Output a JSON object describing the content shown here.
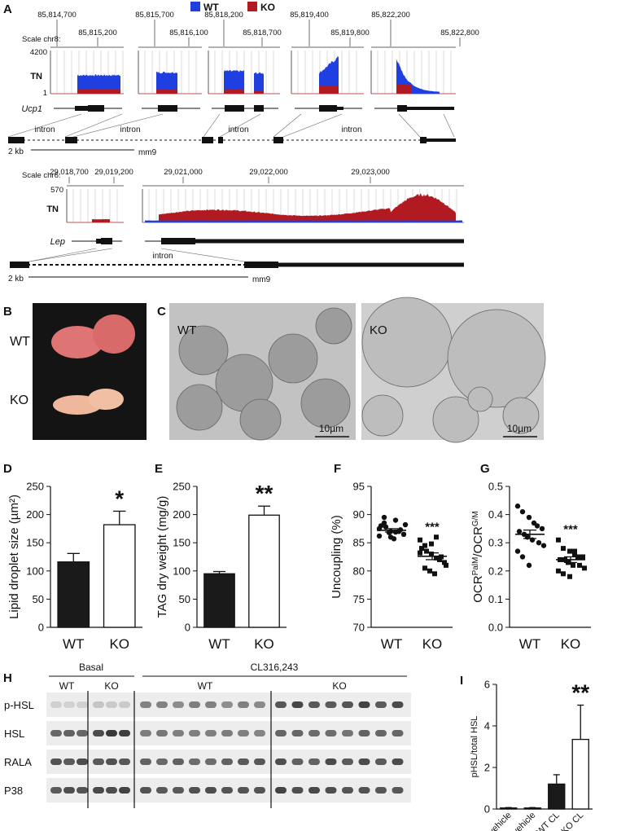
{
  "legend": {
    "items": [
      {
        "name": "WT",
        "color": "#1f3fe0"
      },
      {
        "name": "KO",
        "color": "#b01a20"
      }
    ]
  },
  "panel_a": {
    "label": "A",
    "chr8": {
      "scale": "Scale chr8:",
      "coordinates": [
        "85,814,700",
        "85,815,200",
        "85,815,700",
        "85,816,100",
        "85,818,200",
        "85,818,700",
        "85,819,400",
        "85,819,800",
        "85,822,200",
        "85,822,800"
      ],
      "track": "TN",
      "track_max": "4200",
      "track_min": "1",
      "gene": "Ucp1",
      "introns": [
        "intron",
        "intron",
        "intron",
        "intron"
      ],
      "scale_bar": "2 kb",
      "assembly": "mm9"
    },
    "chr6": {
      "scale": "Scale chr6:",
      "coordinates": [
        "29,018,700",
        "29,019,200",
        "29,021,000",
        "29,022,000",
        "29,023,000"
      ],
      "track": "TN",
      "track_max": "570",
      "gene": "Lep",
      "introns": [
        "intron"
      ],
      "scale_bar": "2 kb",
      "assembly": "mm9"
    }
  },
  "panel_b": {
    "label": "B",
    "rows": [
      "WT",
      "KO"
    ]
  },
  "panel_c": {
    "label": "C",
    "images": [
      {
        "genotype": "WT",
        "scale_bar": "10µm"
      },
      {
        "genotype": "KO",
        "scale_bar": "10µm"
      }
    ]
  },
  "panel_h": {
    "label": "H",
    "groups": [
      {
        "name": "Basal",
        "subgroups": [
          "WT",
          "KO"
        ]
      },
      {
        "name": "CL316,243",
        "subgroups": [
          "WT",
          "KO"
        ]
      }
    ],
    "rows": [
      "p-HSL",
      "HSL",
      "RALA",
      "P38"
    ]
  },
  "chart_data": [
    {
      "label": "D",
      "type": "bar",
      "ylabel": "Lipid droplet size (µm²)",
      "categories": [
        "WT",
        "KO"
      ],
      "values": [
        116,
        182
      ],
      "errors": [
        15,
        24
      ],
      "colors": [
        "#1a1a1a",
        "#ffffff"
      ],
      "ylim": [
        0,
        250
      ],
      "yticks": [
        0,
        50,
        100,
        150,
        200,
        250
      ],
      "annotation": "*"
    },
    {
      "label": "E",
      "type": "bar",
      "ylabel": "TAG dry weight (mg/g)",
      "categories": [
        "WT",
        "KO"
      ],
      "values": [
        95,
        199
      ],
      "errors": [
        4,
        16
      ],
      "colors": [
        "#1a1a1a",
        "#ffffff"
      ],
      "ylim": [
        0,
        250
      ],
      "yticks": [
        0,
        50,
        100,
        150,
        200,
        250
      ],
      "annotation": "**"
    },
    {
      "label": "F",
      "type": "scatter",
      "ylabel": "Uncoupling (%)",
      "categories": [
        "WT",
        "KO"
      ],
      "series": [
        {
          "name": "WT",
          "color": "#111111",
          "values": [
            87.5,
            88.5,
            86,
            89,
            87,
            86.5,
            88,
            87.8,
            86.8,
            85.7,
            87.3,
            88.2,
            86.2,
            89.5,
            87,
            86.9
          ]
        },
        {
          "name": "KO",
          "color": "#111111",
          "values": [
            85.5,
            84.5,
            83,
            86,
            82,
            81.5,
            84,
            83.5,
            80,
            79.5,
            82.5,
            81,
            83.2,
            80.5,
            84.8,
            82.3
          ]
        }
      ],
      "means": [
        87.2,
        82.6
      ],
      "errors": [
        0.3,
        0.6
      ],
      "ylim": [
        70,
        95
      ],
      "yticks": [
        70,
        75,
        80,
        85,
        90,
        95
      ],
      "annotation": "***"
    },
    {
      "label": "G",
      "type": "scatter",
      "ylabel": [
        "OCR",
        "PalM",
        "/OCR",
        "G/M"
      ],
      "categories": [
        "WT",
        "KO"
      ],
      "series": [
        {
          "name": "WT",
          "color": "#111111",
          "values": [
            0.43,
            0.41,
            0.39,
            0.37,
            0.36,
            0.35,
            0.34,
            0.33,
            0.32,
            0.31,
            0.3,
            0.29,
            0.27,
            0.25,
            0.22
          ]
        },
        {
          "name": "KO",
          "color": "#111111",
          "values": [
            0.31,
            0.28,
            0.27,
            0.26,
            0.25,
            0.25,
            0.24,
            0.24,
            0.23,
            0.22,
            0.22,
            0.21,
            0.2,
            0.19,
            0.18,
            0.27
          ]
        }
      ],
      "means": [
        0.33,
        0.24
      ],
      "errors": [
        0.015,
        0.01
      ],
      "ylim": [
        0,
        0.5
      ],
      "yticks": [
        {
          "value": 0,
          "label": "0.0"
        },
        0.1,
        0.2,
        0.3,
        0.4,
        0.5
      ],
      "annotation": "***"
    },
    {
      "label": "I",
      "type": "bar",
      "ylabel": "pHSL/total HSL",
      "categories": [
        "WT vehicle",
        "KO vehicle",
        "WT CL",
        "KO CL"
      ],
      "values": [
        0.05,
        0.05,
        1.2,
        3.35
      ],
      "errors": [
        0.02,
        0.02,
        0.45,
        1.65
      ],
      "colors": [
        "#1a1a1a",
        "#ffffff",
        "#1a1a1a",
        "#ffffff"
      ],
      "ylim": [
        0,
        6
      ],
      "yticks": [
        0,
        2,
        4,
        6
      ],
      "annotation": "**"
    }
  ]
}
